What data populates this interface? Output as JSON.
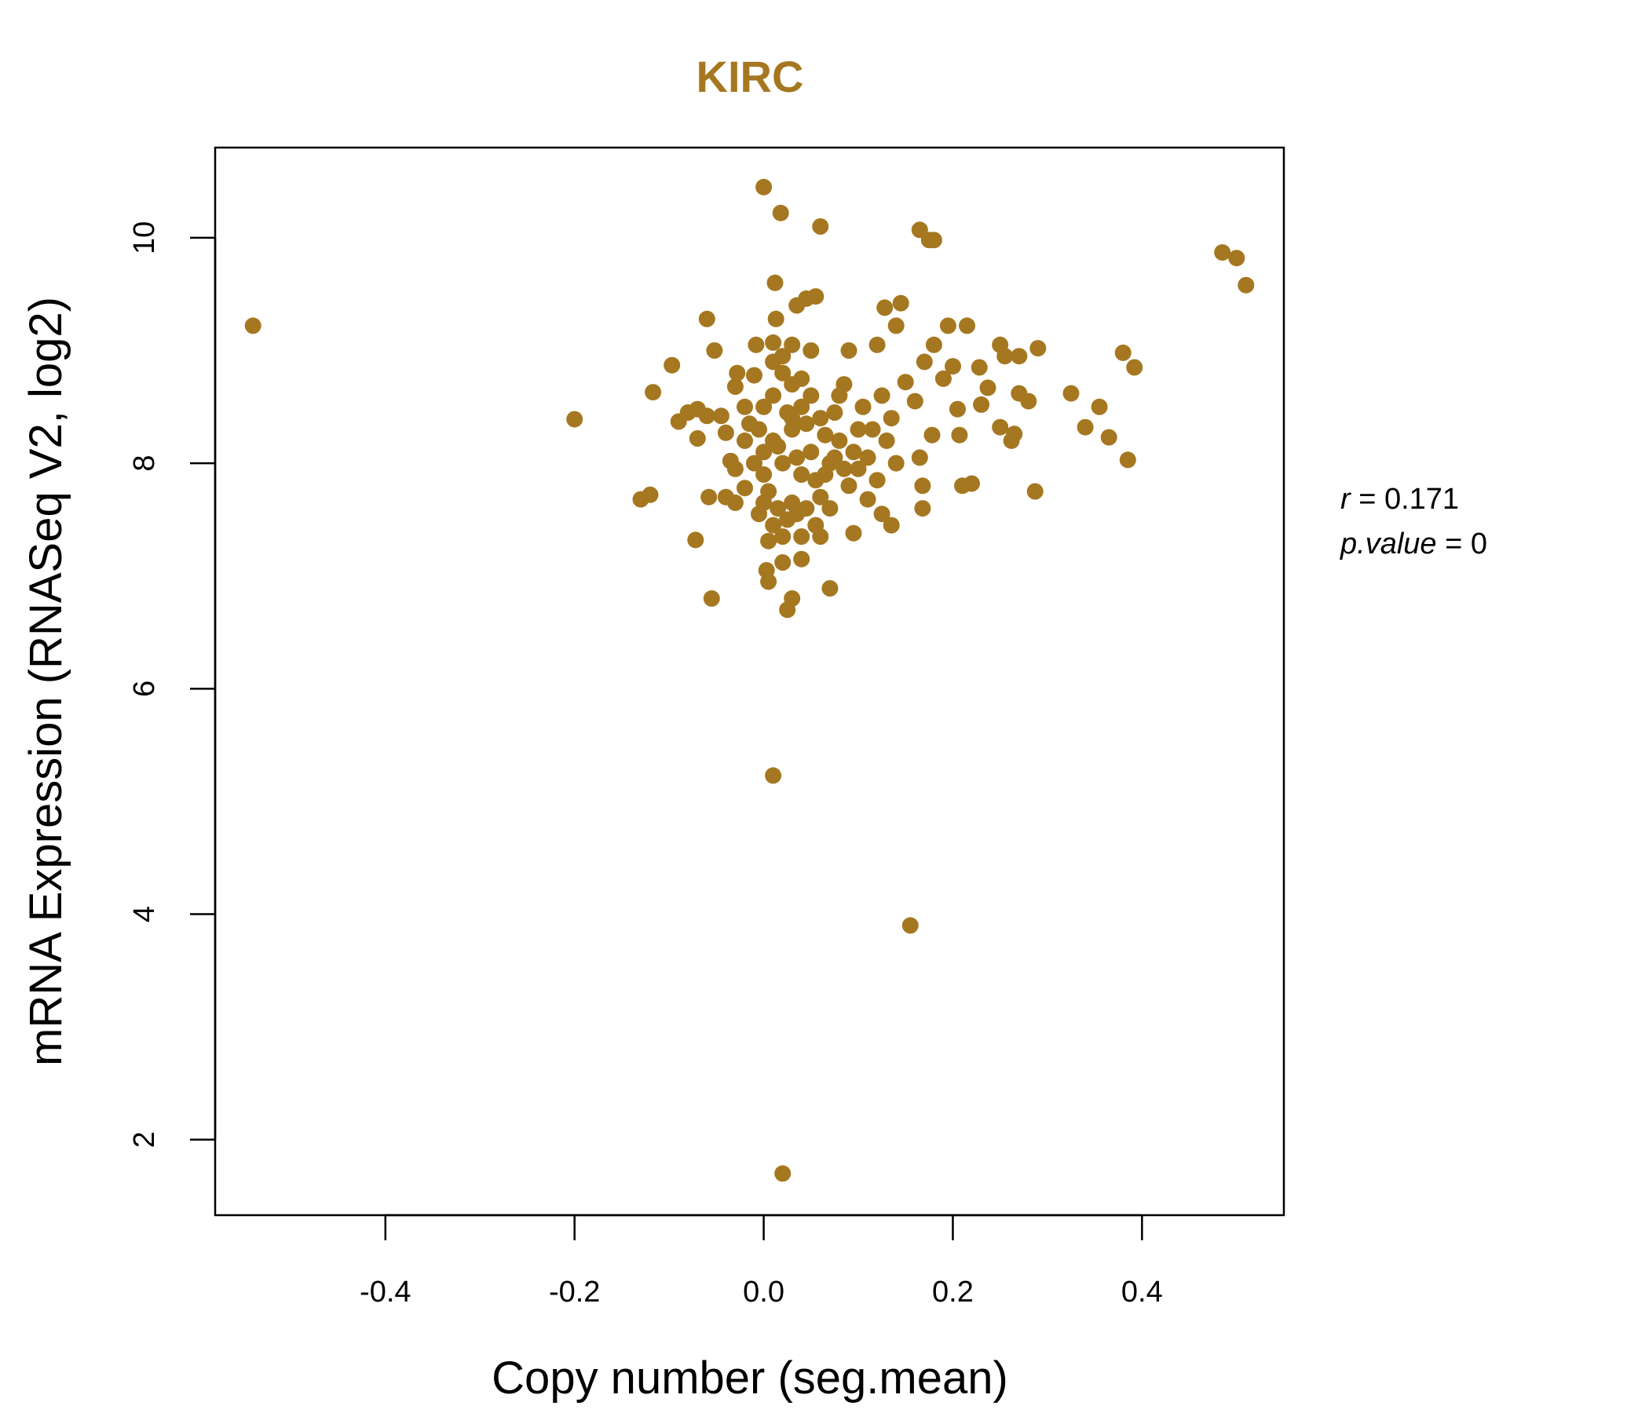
{
  "colors": {
    "points": "#A57720",
    "title": "#A57720",
    "axis": "#000000"
  },
  "chart_data": {
    "type": "scatter",
    "title": "KIRC",
    "xlabel": "Copy number (seg.mean)",
    "ylabel": "mRNA Expression (RNASeq V2, log2)",
    "xlim": [
      -0.58,
      0.55
    ],
    "ylim": [
      1.33,
      10.8
    ],
    "xticks": [
      -0.4,
      -0.2,
      0.0,
      0.2,
      0.4
    ],
    "xtick_labels": [
      "-0.4",
      "-0.2",
      "0.0",
      "0.2",
      "0.4"
    ],
    "yticks": [
      2,
      4,
      6,
      8,
      10
    ],
    "ytick_labels": [
      "2",
      "4",
      "6",
      "8",
      "10"
    ],
    "grid": false,
    "annotation": {
      "r_label": "r",
      "r_value": "0.171",
      "p_label": "p.value",
      "p_value": "0"
    },
    "points": [
      [
        -0.54,
        9.22
      ],
      [
        -0.2,
        8.39
      ],
      [
        -0.13,
        7.68
      ],
      [
        -0.12,
        7.72
      ],
      [
        -0.117,
        8.63
      ],
      [
        -0.097,
        8.87
      ],
      [
        -0.09,
        8.37
      ],
      [
        -0.08,
        8.45
      ],
      [
        -0.07,
        8.48
      ],
      [
        -0.07,
        8.22
      ],
      [
        -0.072,
        7.32
      ],
      [
        -0.06,
        8.42
      ],
      [
        -0.058,
        7.7
      ],
      [
        -0.055,
        6.8
      ],
      [
        -0.06,
        9.28
      ],
      [
        -0.052,
        9.0
      ],
      [
        -0.045,
        8.42
      ],
      [
        -0.04,
        8.27
      ],
      [
        -0.035,
        8.02
      ],
      [
        -0.03,
        8.68
      ],
      [
        -0.028,
        8.8
      ],
      [
        -0.02,
        8.5
      ],
      [
        -0.02,
        7.78
      ],
      [
        -0.015,
        8.35
      ],
      [
        -0.01,
        8.78
      ],
      [
        -0.008,
        9.05
      ],
      [
        -0.005,
        7.55
      ],
      [
        0.0,
        8.1
      ],
      [
        0.0,
        10.45
      ],
      [
        0.003,
        7.05
      ],
      [
        0.005,
        6.95
      ],
      [
        0.005,
        7.31
      ],
      [
        0.01,
        9.07
      ],
      [
        0.01,
        5.23
      ],
      [
        0.012,
        9.6
      ],
      [
        0.013,
        9.28
      ],
      [
        0.018,
        10.22
      ],
      [
        0.02,
        1.7
      ],
      [
        0.02,
        7.12
      ],
      [
        0.025,
        6.7
      ],
      [
        0.03,
        6.8
      ],
      [
        0.03,
        9.05
      ],
      [
        0.035,
        9.4
      ],
      [
        0.04,
        7.15
      ],
      [
        0.045,
        9.46
      ],
      [
        0.05,
        9.0
      ],
      [
        0.055,
        9.48
      ],
      [
        0.06,
        10.1
      ],
      [
        0.07,
        6.89
      ],
      [
        0.09,
        9.0
      ],
      [
        0.095,
        7.38
      ],
      [
        0.11,
        8.05
      ],
      [
        0.11,
        7.68
      ],
      [
        0.12,
        9.05
      ],
      [
        0.125,
        7.55
      ],
      [
        0.128,
        9.38
      ],
      [
        0.13,
        8.2
      ],
      [
        0.135,
        7.45
      ],
      [
        0.14,
        8.0
      ],
      [
        0.14,
        9.22
      ],
      [
        0.145,
        9.42
      ],
      [
        0.15,
        8.72
      ],
      [
        0.155,
        3.9
      ],
      [
        0.16,
        8.55
      ],
      [
        0.165,
        10.07
      ],
      [
        0.165,
        8.05
      ],
      [
        0.168,
        7.6
      ],
      [
        0.168,
        7.8
      ],
      [
        0.17,
        8.9
      ],
      [
        0.175,
        9.98
      ],
      [
        0.178,
        8.25
      ],
      [
        0.18,
        9.98
      ],
      [
        0.18,
        9.05
      ],
      [
        0.19,
        8.75
      ],
      [
        0.195,
        9.22
      ],
      [
        0.2,
        8.86
      ],
      [
        0.205,
        8.48
      ],
      [
        0.207,
        8.25
      ],
      [
        0.21,
        7.8
      ],
      [
        0.215,
        9.22
      ],
      [
        0.22,
        7.82
      ],
      [
        0.228,
        8.85
      ],
      [
        0.23,
        8.52
      ],
      [
        0.237,
        8.67
      ],
      [
        0.25,
        9.05
      ],
      [
        0.25,
        8.32
      ],
      [
        0.255,
        8.95
      ],
      [
        0.262,
        8.2
      ],
      [
        0.265,
        8.26
      ],
      [
        0.27,
        8.95
      ],
      [
        0.27,
        8.62
      ],
      [
        0.28,
        8.55
      ],
      [
        0.287,
        7.75
      ],
      [
        0.29,
        9.02
      ],
      [
        0.325,
        8.62
      ],
      [
        0.34,
        8.32
      ],
      [
        0.355,
        8.5
      ],
      [
        0.365,
        8.23
      ],
      [
        0.38,
        8.98
      ],
      [
        0.385,
        8.03
      ],
      [
        0.392,
        8.85
      ],
      [
        0.485,
        9.87
      ],
      [
        0.5,
        9.82
      ],
      [
        0.51,
        9.58
      ],
      [
        0.0,
        8.5
      ],
      [
        0.01,
        8.2
      ],
      [
        0.02,
        8.0
      ],
      [
        0.03,
        8.3
      ],
      [
        0.04,
        7.9
      ],
      [
        0.05,
        8.1
      ],
      [
        0.06,
        8.4
      ],
      [
        0.07,
        8.0
      ],
      [
        0.08,
        8.2
      ],
      [
        0.09,
        7.8
      ],
      [
        0.0,
        7.9
      ],
      [
        0.01,
        8.6
      ],
      [
        0.02,
        8.8
      ],
      [
        0.03,
        8.7
      ],
      [
        0.04,
        8.5
      ],
      [
        0.05,
        8.6
      ],
      [
        0.06,
        7.7
      ],
      [
        0.07,
        7.6
      ],
      [
        0.08,
        8.6
      ],
      [
        0.1,
        8.3
      ],
      [
        -0.01,
        8.0
      ],
      [
        -0.02,
        8.2
      ],
      [
        -0.03,
        7.95
      ],
      [
        0.015,
        7.6
      ],
      [
        0.025,
        7.5
      ],
      [
        0.035,
        7.55
      ],
      [
        0.045,
        7.6
      ],
      [
        0.055,
        7.45
      ],
      [
        0.065,
        7.9
      ],
      [
        0.075,
        8.45
      ],
      [
        0.085,
        8.7
      ],
      [
        0.095,
        8.1
      ],
      [
        0.105,
        8.5
      ],
      [
        0.115,
        8.3
      ],
      [
        0.125,
        8.6
      ],
      [
        0.135,
        8.4
      ],
      [
        0.01,
        8.9
      ],
      [
        0.02,
        8.95
      ],
      [
        0.03,
        8.4
      ],
      [
        0.04,
        8.75
      ],
      [
        -0.005,
        8.3
      ],
      [
        0.005,
        7.75
      ],
      [
        0.015,
        8.15
      ],
      [
        0.025,
        8.45
      ],
      [
        0.035,
        8.05
      ],
      [
        0.045,
        8.35
      ],
      [
        0.055,
        7.85
      ],
      [
        0.065,
        8.25
      ],
      [
        0.075,
        8.05
      ],
      [
        0.085,
        7.95
      ],
      [
        0.02,
        7.35
      ],
      [
        0.01,
        7.45
      ],
      [
        0.03,
        7.65
      ],
      [
        0.0,
        7.65
      ],
      [
        0.04,
        7.35
      ],
      [
        0.06,
        7.35
      ],
      [
        -0.03,
        7.65
      ],
      [
        -0.04,
        7.7
      ],
      [
        0.1,
        7.95
      ],
      [
        0.12,
        7.85
      ]
    ]
  }
}
